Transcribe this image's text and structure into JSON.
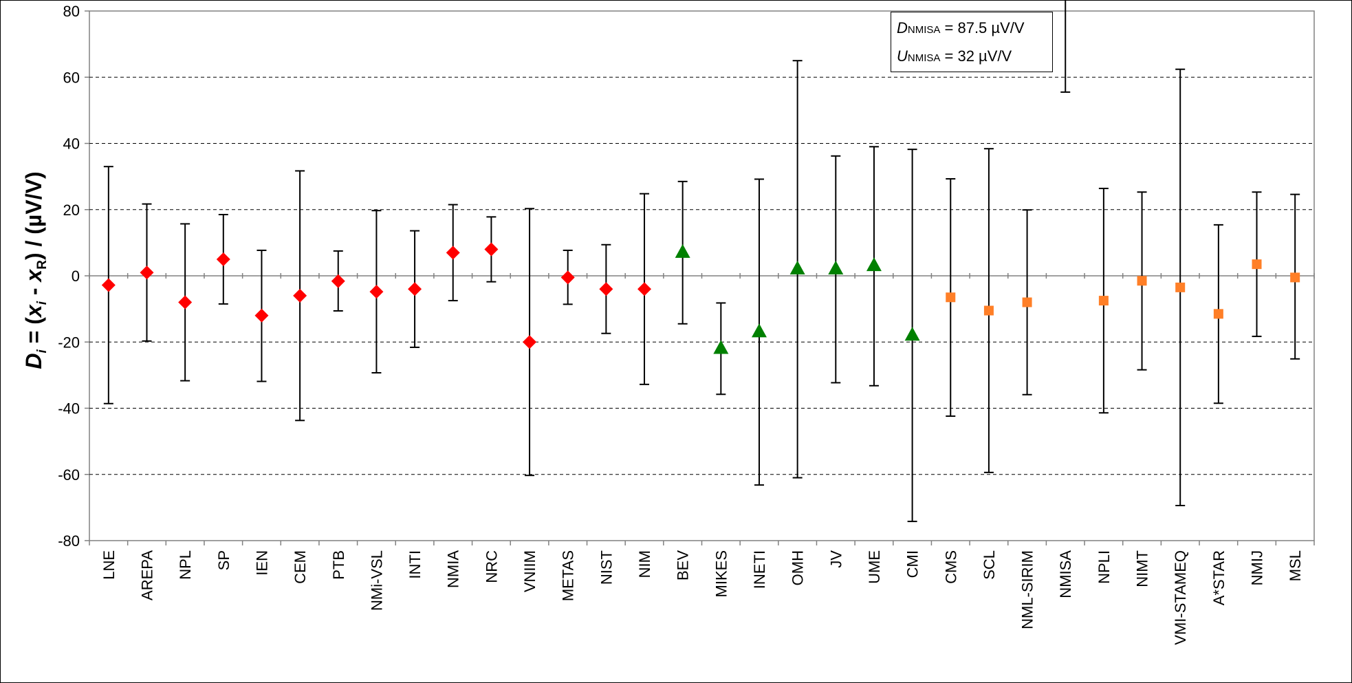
{
  "chart_data": {
    "type": "scatter",
    "ylabel": {
      "prefix": "D",
      "prefix_sub": "i",
      "middle": " = (",
      "x1": "x",
      "x1_sub": "i",
      "minus": " - ",
      "x2": "x",
      "x2_sub": "R",
      "suffix": ") / (µV/V)"
    },
    "ylim": [
      -80,
      80
    ],
    "yticks": [
      80,
      60,
      40,
      20,
      0,
      -20,
      -40,
      -60,
      -80
    ],
    "grid": "horizontal dashed at ±20, ±40, ±60",
    "categories": [
      "LNE",
      "AREPA",
      "NPL",
      "SP",
      "IEN",
      "CEM",
      "PTB",
      "NMi-VSL",
      "INTI",
      "NMIA",
      "NRC",
      "VNIIM",
      "METAS",
      "NIST",
      "NIM",
      "BEV",
      "MIKES",
      "INETI",
      "OMH",
      "JV",
      "UME",
      "CMI",
      "CMS",
      "SCL",
      "NML-SIRIM",
      "NMISA",
      "NPLI",
      "NIMT",
      "VMI-STAMEQ",
      "A*STAR",
      "NMIJ",
      "MSL"
    ],
    "series": [
      {
        "marker": "diamond",
        "color": "#ff0000",
        "points": [
          {
            "label": "LNE",
            "y": -2.8,
            "upper": 33,
            "lower": -38.6
          },
          {
            "label": "AREPA",
            "y": 1,
            "upper": 21.7,
            "lower": -19.7
          },
          {
            "label": "NPL",
            "y": -8,
            "upper": 15.7,
            "lower": -31.7
          },
          {
            "label": "SP",
            "y": 5,
            "upper": 18.5,
            "lower": -8.5
          },
          {
            "label": "IEN",
            "y": -12,
            "upper": 7.7,
            "lower": -31.9
          },
          {
            "label": "CEM",
            "y": -6,
            "upper": 31.7,
            "lower": -43.7
          },
          {
            "label": "PTB",
            "y": -1.6,
            "upper": 7.5,
            "lower": -10.6
          },
          {
            "label": "NMi-VSL",
            "y": -4.8,
            "upper": 19.7,
            "lower": -29.3
          },
          {
            "label": "INTI",
            "y": -4,
            "upper": 13.6,
            "lower": -21.6
          },
          {
            "label": "NMIA",
            "y": 7,
            "upper": 21.5,
            "lower": -7.5
          },
          {
            "label": "NRC",
            "y": 8,
            "upper": 17.8,
            "lower": -1.8
          },
          {
            "label": "VNIIM",
            "y": -20,
            "upper": 20.3,
            "lower": -60.3
          },
          {
            "label": "METAS",
            "y": -0.5,
            "upper": 7.7,
            "lower": -8.6
          },
          {
            "label": "NIST",
            "y": -4,
            "upper": 9.4,
            "lower": -17.4
          },
          {
            "label": "NIM",
            "y": -4,
            "upper": 24.8,
            "lower": -32.8
          }
        ]
      },
      {
        "marker": "triangle",
        "color": "#008000",
        "points": [
          {
            "label": "BEV",
            "y": 7,
            "upper": 28.5,
            "lower": -14.5
          },
          {
            "label": "MIKES",
            "y": -22,
            "upper": -8.2,
            "lower": -35.8
          },
          {
            "label": "INETI",
            "y": -17,
            "upper": 29.2,
            "lower": -63.2
          },
          {
            "label": "OMH",
            "y": 2,
            "upper": 65,
            "lower": -61
          },
          {
            "label": "JV",
            "y": 2,
            "upper": 36.2,
            "lower": -32.3
          },
          {
            "label": "UME",
            "y": 3,
            "upper": 39,
            "lower": -33.2
          },
          {
            "label": "CMI",
            "y": -18,
            "upper": 38.2,
            "lower": -74.2
          }
        ]
      },
      {
        "marker": "square",
        "color": "#ff7f27",
        "points": [
          {
            "label": "CMS",
            "y": -6.5,
            "upper": 29.3,
            "lower": -42.4
          },
          {
            "label": "SCL",
            "y": -10.5,
            "upper": 38.4,
            "lower": -59.4
          },
          {
            "label": "NML-SIRIM",
            "y": -8,
            "upper": 19.9,
            "lower": -35.9
          },
          {
            "label": "NPLI",
            "y": -7.5,
            "upper": 26.4,
            "lower": -41.4
          },
          {
            "label": "NIMT",
            "y": -1.5,
            "upper": 25.3,
            "lower": -28.4
          },
          {
            "label": "VMI-STAMEQ",
            "y": -3.5,
            "upper": 62.4,
            "lower": -69.4
          },
          {
            "label": "A*STAR",
            "y": -11.5,
            "upper": 15.4,
            "lower": -38.5
          },
          {
            "label": "NMIJ",
            "y": 3.5,
            "upper": 25.3,
            "lower": -18.3
          },
          {
            "label": "MSL",
            "y": -0.5,
            "upper": 24.6,
            "lower": -25.1
          }
        ]
      }
    ],
    "offscale": {
      "label": "NMISA",
      "y": 87.5,
      "lower": 55.5
    },
    "annotation": {
      "line1_sym": "D",
      "line1_sub": "NMISA",
      "line1_val": " = 87.5 µV/V",
      "line2_sym": "U",
      "line2_sub": "NMISA",
      "line2_val": " = 32 µV/V"
    }
  }
}
